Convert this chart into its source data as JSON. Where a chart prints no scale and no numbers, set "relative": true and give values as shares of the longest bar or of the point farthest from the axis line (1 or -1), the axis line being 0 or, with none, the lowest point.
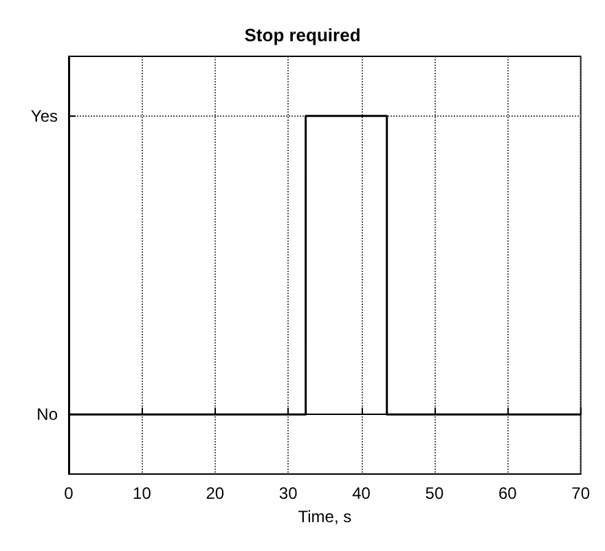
{
  "chart_data": {
    "type": "step",
    "title": "Stop required",
    "xlabel": "Time, s",
    "x": [
      0,
      32.4,
      43.5,
      70
    ],
    "relative": true,
    "series": [
      {
        "color": "#000000",
        "values": [
          0,
          1,
          0,
          0
        ]
      }
    ],
    "annotations": [
      "Yes",
      "No"
    ],
    "xlim": [
      0,
      70
    ],
    "xticks": [
      0,
      10,
      20,
      30,
      40,
      50,
      60,
      70
    ],
    "grid": true,
    "marker": "none",
    "line_style": "solid"
  }
}
